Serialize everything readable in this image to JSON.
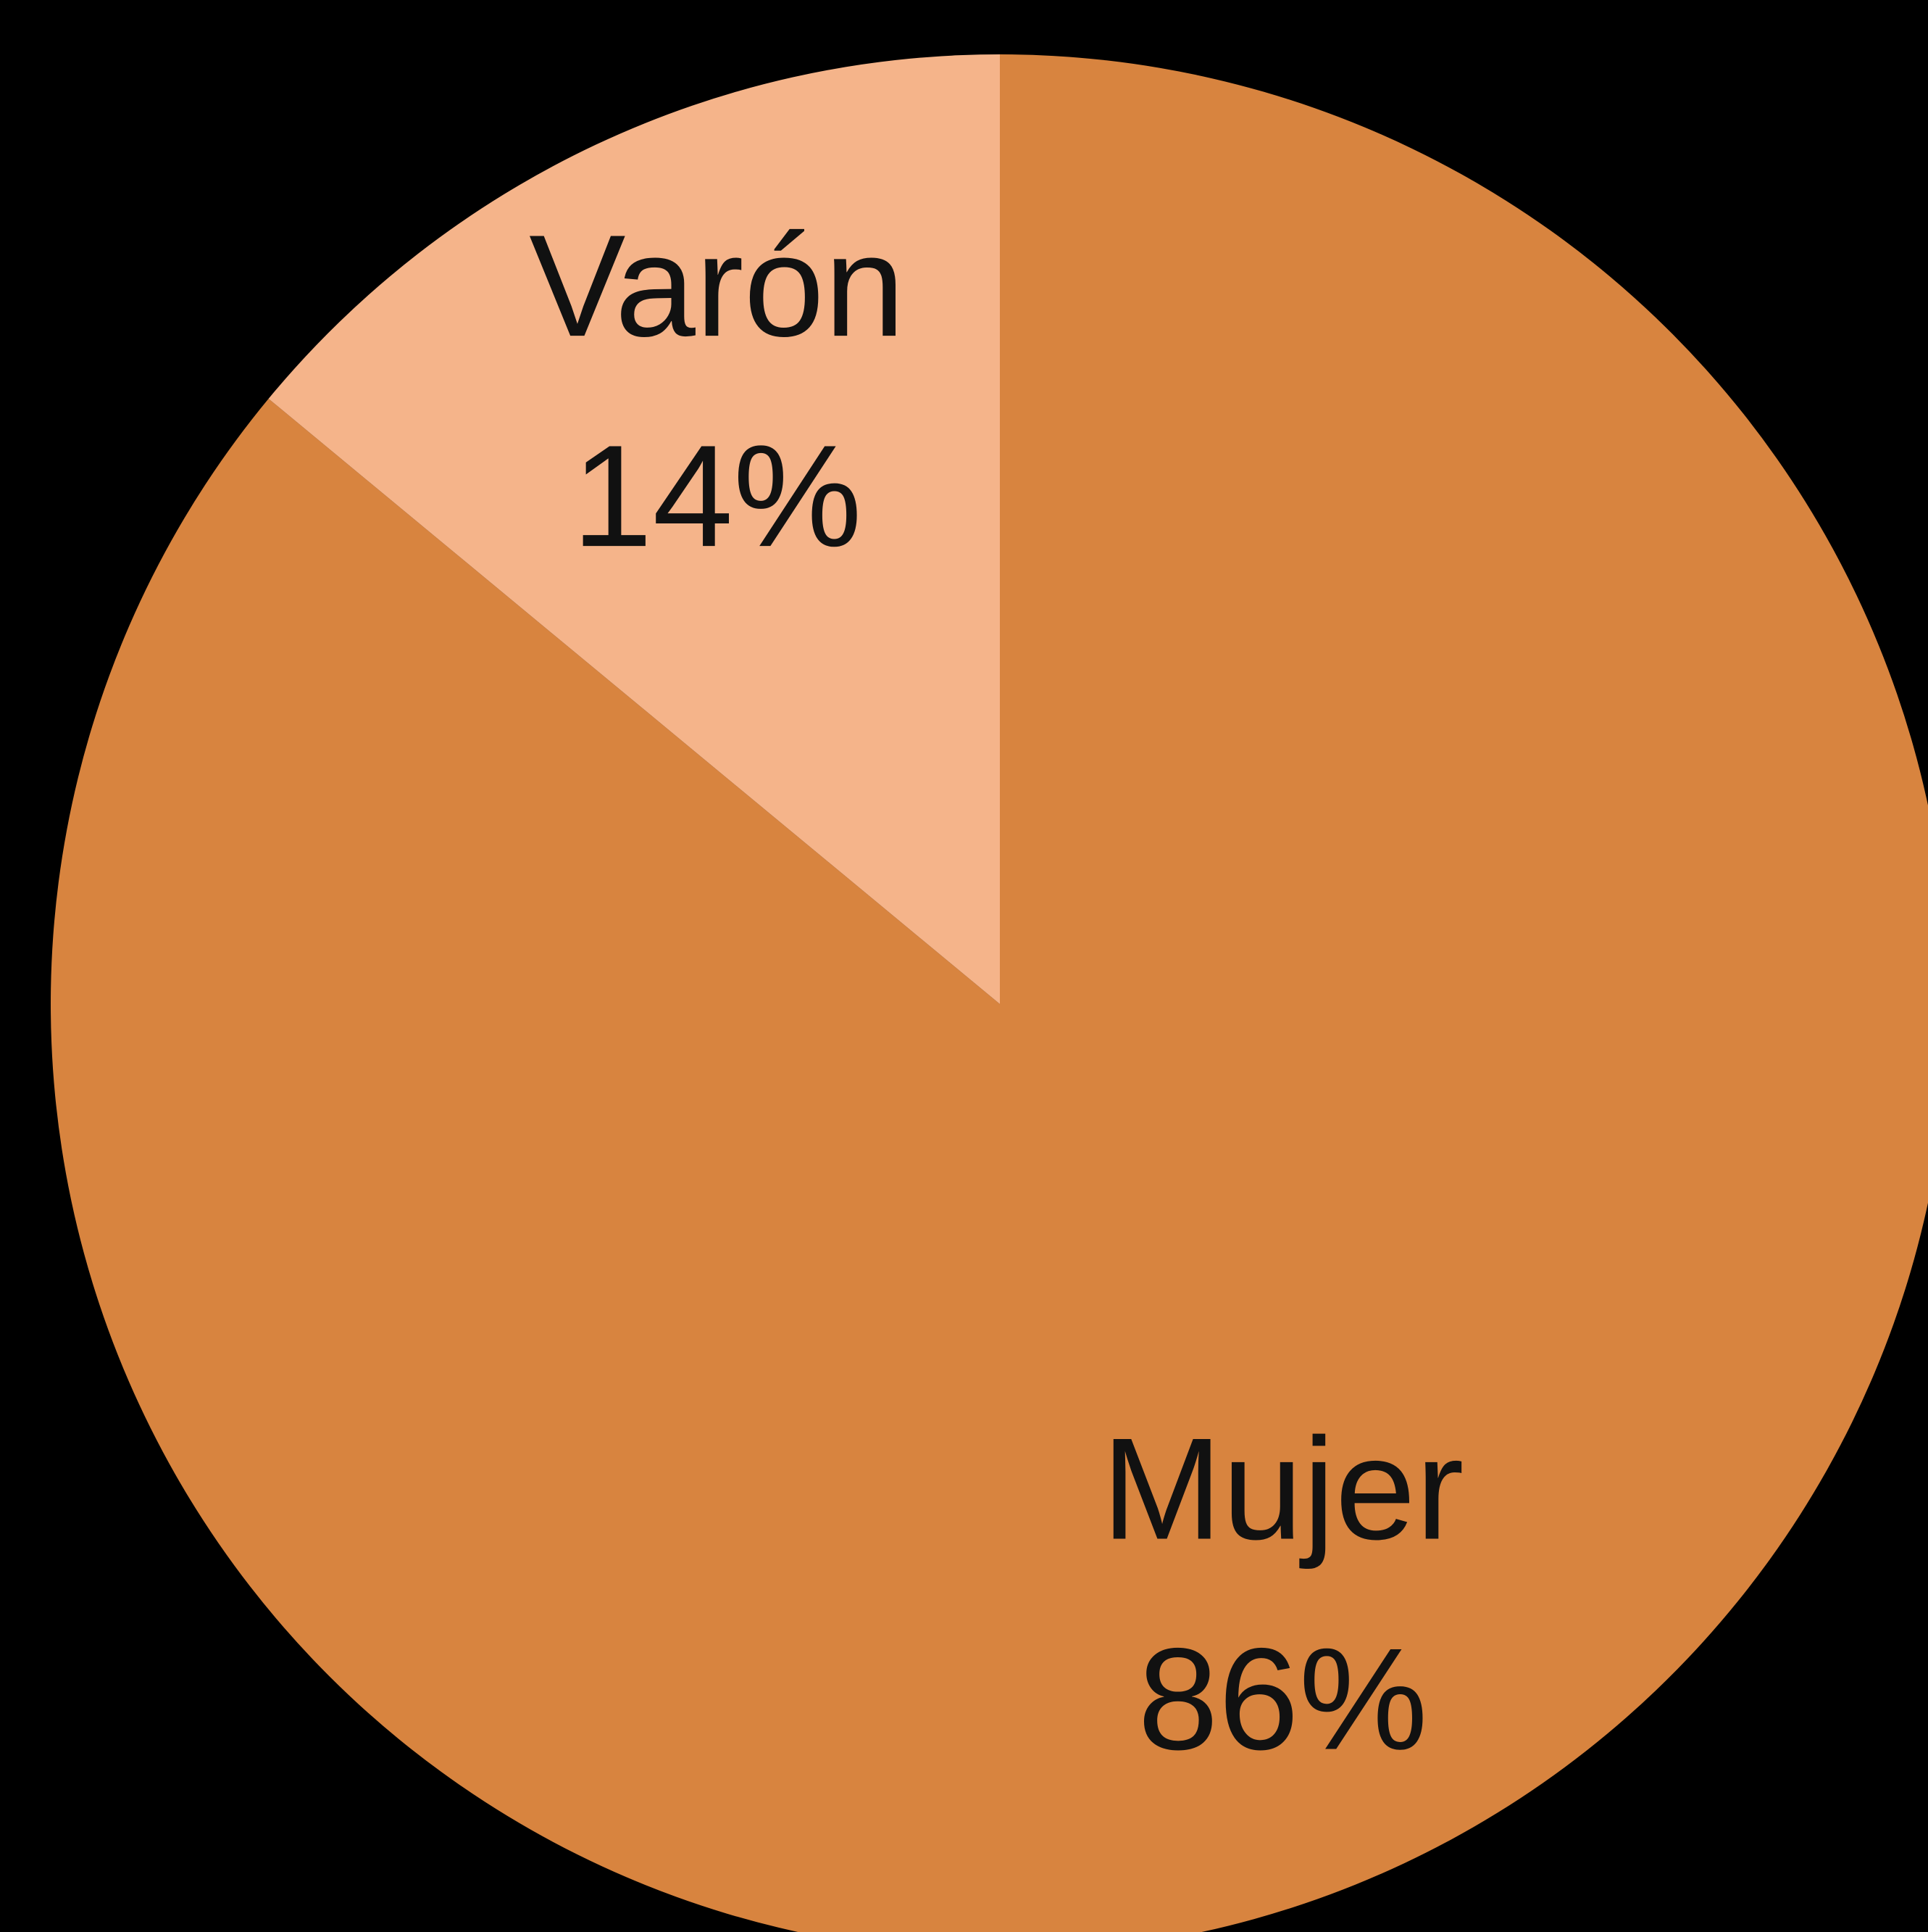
{
  "chart_data": {
    "type": "pie",
    "categories": [
      "Mujer",
      "Varón"
    ],
    "values": [
      86,
      14
    ],
    "value_labels": [
      "86%",
      "14%"
    ],
    "colors": [
      "#d8843f",
      "#f5b48a"
    ]
  }
}
